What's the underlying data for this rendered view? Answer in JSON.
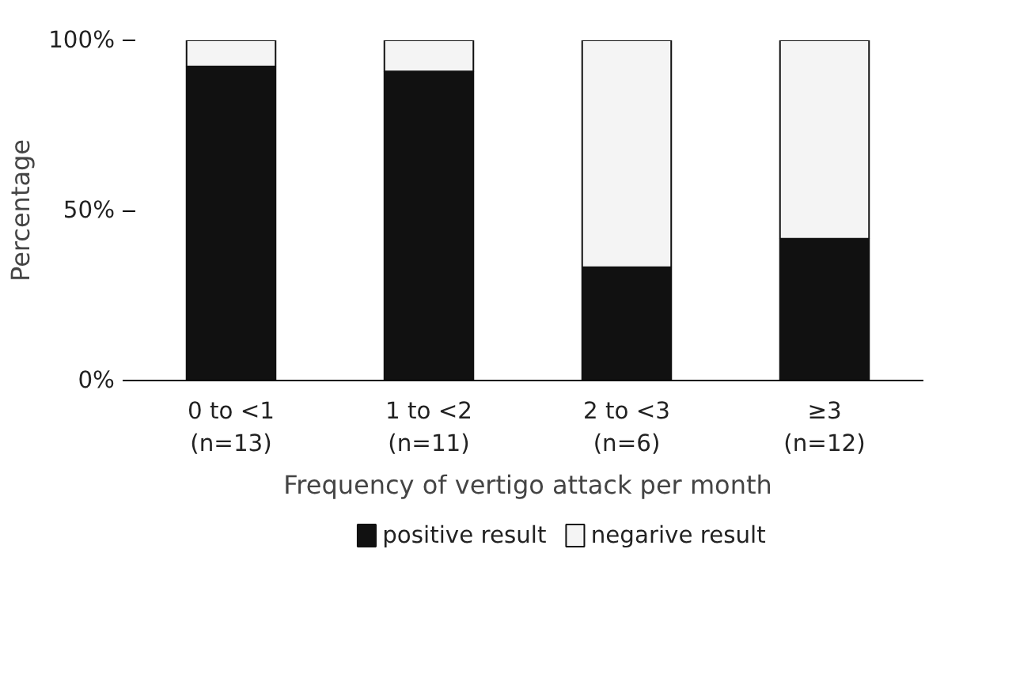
{
  "chart_data": {
    "type": "bar",
    "stacked": true,
    "xlabel": "Frequency of vertigo attack per month",
    "ylabel": "Percentage",
    "categories": [
      "0 to <1\n(n=13)",
      "1 to <2\n(n=11)",
      "2 to <3\n(n=6)",
      "≥3\n(n=12)"
    ],
    "series": [
      {
        "name": "positive result",
        "color": "#111111",
        "values": [
          92.3,
          90.9,
          33.3,
          41.7
        ]
      },
      {
        "name": "negarive result",
        "color": "#f4f4f4",
        "values": [
          7.7,
          9.1,
          66.7,
          58.3
        ]
      }
    ],
    "ylim": [
      0,
      100
    ],
    "yticks": [
      {
        "value": 0,
        "label": "0%"
      },
      {
        "value": 50,
        "label": "50%"
      },
      {
        "value": 100,
        "label": "100%"
      }
    ],
    "grid": false,
    "legend": "bottom"
  }
}
